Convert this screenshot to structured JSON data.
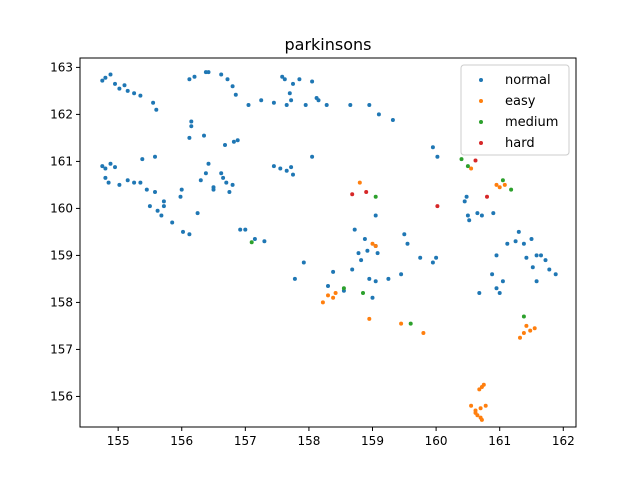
{
  "chart_data": {
    "type": "scatter",
    "title": "parkinsons",
    "xlabel": "",
    "ylabel": "",
    "xlim": [
      154.4,
      162.2
    ],
    "ylim": [
      155.35,
      163.2
    ],
    "xticks": [
      155,
      156,
      157,
      158,
      159,
      160,
      161,
      162
    ],
    "yticks": [
      156,
      157,
      158,
      159,
      160,
      161,
      162,
      163
    ],
    "grid": false,
    "legend_position": "top-right",
    "series": [
      {
        "name": "normal",
        "color": "#1f77b4",
        "points": [
          [
            154.75,
            162.72
          ],
          [
            154.8,
            162.78
          ],
          [
            154.88,
            162.85
          ],
          [
            154.95,
            162.65
          ],
          [
            155.02,
            162.55
          ],
          [
            155.1,
            162.62
          ],
          [
            155.15,
            162.5
          ],
          [
            155.25,
            162.45
          ],
          [
            155.35,
            162.4
          ],
          [
            155.55,
            162.25
          ],
          [
            155.6,
            162.1
          ],
          [
            154.75,
            160.9
          ],
          [
            154.8,
            160.85
          ],
          [
            154.88,
            160.95
          ],
          [
            154.95,
            160.88
          ],
          [
            154.8,
            160.65
          ],
          [
            154.85,
            160.55
          ],
          [
            155.02,
            160.5
          ],
          [
            155.15,
            160.6
          ],
          [
            155.25,
            160.55
          ],
          [
            155.35,
            160.55
          ],
          [
            155.38,
            161.05
          ],
          [
            155.58,
            161.1
          ],
          [
            155.45,
            160.4
          ],
          [
            155.58,
            160.35
          ],
          [
            155.5,
            160.05
          ],
          [
            155.62,
            159.95
          ],
          [
            155.68,
            159.85
          ],
          [
            155.72,
            160.05
          ],
          [
            155.72,
            160.15
          ],
          [
            155.85,
            159.7
          ],
          [
            155.98,
            160.25
          ],
          [
            156.0,
            160.4
          ],
          [
            156.02,
            159.5
          ],
          [
            156.12,
            159.45
          ],
          [
            156.25,
            159.9
          ],
          [
            156.12,
            162.75
          ],
          [
            156.2,
            162.8
          ],
          [
            156.38,
            162.9
          ],
          [
            156.42,
            162.9
          ],
          [
            156.62,
            162.85
          ],
          [
            156.72,
            162.75
          ],
          [
            156.8,
            162.6
          ],
          [
            156.85,
            162.42
          ],
          [
            156.15,
            161.85
          ],
          [
            156.15,
            161.75
          ],
          [
            156.35,
            161.55
          ],
          [
            156.12,
            161.5
          ],
          [
            156.42,
            160.95
          ],
          [
            156.38,
            160.75
          ],
          [
            156.3,
            160.6
          ],
          [
            156.5,
            160.45
          ],
          [
            156.5,
            160.4
          ],
          [
            156.65,
            160.65
          ],
          [
            156.7,
            160.55
          ],
          [
            156.62,
            160.75
          ],
          [
            156.75,
            160.35
          ],
          [
            156.8,
            160.5
          ],
          [
            156.68,
            161.35
          ],
          [
            156.82,
            161.42
          ],
          [
            156.88,
            161.45
          ],
          [
            157.05,
            162.2
          ],
          [
            157.25,
            162.3
          ],
          [
            157.45,
            162.25
          ],
          [
            157.58,
            162.8
          ],
          [
            157.62,
            162.75
          ],
          [
            157.65,
            162.2
          ],
          [
            157.7,
            162.45
          ],
          [
            157.72,
            162.3
          ],
          [
            157.75,
            162.65
          ],
          [
            157.85,
            162.75
          ],
          [
            157.95,
            162.2
          ],
          [
            158.05,
            162.7
          ],
          [
            158.12,
            162.35
          ],
          [
            158.15,
            162.3
          ],
          [
            158.28,
            162.2
          ],
          [
            158.65,
            162.2
          ],
          [
            158.95,
            162.2
          ],
          [
            159.1,
            162.0
          ],
          [
            159.32,
            161.88
          ],
          [
            157.45,
            160.9
          ],
          [
            157.55,
            160.85
          ],
          [
            157.65,
            160.8
          ],
          [
            157.72,
            160.88
          ],
          [
            157.75,
            160.72
          ],
          [
            158.05,
            161.1
          ],
          [
            156.92,
            159.55
          ],
          [
            157.0,
            159.55
          ],
          [
            157.15,
            159.35
          ],
          [
            157.3,
            159.3
          ],
          [
            157.78,
            158.5
          ],
          [
            157.92,
            158.85
          ],
          [
            158.3,
            158.35
          ],
          [
            158.38,
            158.65
          ],
          [
            158.55,
            158.25
          ],
          [
            158.68,
            158.7
          ],
          [
            158.72,
            159.55
          ],
          [
            158.78,
            159.05
          ],
          [
            158.82,
            158.9
          ],
          [
            158.88,
            159.35
          ],
          [
            158.92,
            159.1
          ],
          [
            158.95,
            158.5
          ],
          [
            159.0,
            158.1
          ],
          [
            159.05,
            159.85
          ],
          [
            159.05,
            159.2
          ],
          [
            159.08,
            159.05
          ],
          [
            159.05,
            158.45
          ],
          [
            159.25,
            158.5
          ],
          [
            159.45,
            158.6
          ],
          [
            159.5,
            159.45
          ],
          [
            159.55,
            159.25
          ],
          [
            159.75,
            158.95
          ],
          [
            159.95,
            158.85
          ],
          [
            160.0,
            158.95
          ],
          [
            159.95,
            161.3
          ],
          [
            160.02,
            161.1
          ],
          [
            160.45,
            160.15
          ],
          [
            160.48,
            160.25
          ],
          [
            160.5,
            159.85
          ],
          [
            160.52,
            159.75
          ],
          [
            160.65,
            159.9
          ],
          [
            160.72,
            159.85
          ],
          [
            160.9,
            159.9
          ],
          [
            160.68,
            158.2
          ],
          [
            160.88,
            158.6
          ],
          [
            160.95,
            158.3
          ],
          [
            161.0,
            158.2
          ],
          [
            160.95,
            159.0
          ],
          [
            161.05,
            158.45
          ],
          [
            161.12,
            159.25
          ],
          [
            161.25,
            159.3
          ],
          [
            161.3,
            159.5
          ],
          [
            161.38,
            159.25
          ],
          [
            161.42,
            158.95
          ],
          [
            161.5,
            159.35
          ],
          [
            161.52,
            158.75
          ],
          [
            161.58,
            159.0
          ],
          [
            161.65,
            159.0
          ],
          [
            161.72,
            158.9
          ],
          [
            161.78,
            158.7
          ],
          [
            161.88,
            158.6
          ],
          [
            161.58,
            158.45
          ]
        ]
      },
      {
        "name": "easy",
        "color": "#ff7f0e",
        "points": [
          [
            158.22,
            158.0
          ],
          [
            158.3,
            158.15
          ],
          [
            158.38,
            158.1
          ],
          [
            158.42,
            158.2
          ],
          [
            158.8,
            160.55
          ],
          [
            159.0,
            159.25
          ],
          [
            159.05,
            159.2
          ],
          [
            158.95,
            157.65
          ],
          [
            159.45,
            157.55
          ],
          [
            159.8,
            157.35
          ],
          [
            160.55,
            160.85
          ],
          [
            160.95,
            160.5
          ],
          [
            161.0,
            160.45
          ],
          [
            161.08,
            160.5
          ],
          [
            161.32,
            157.25
          ],
          [
            161.38,
            157.35
          ],
          [
            161.42,
            157.5
          ],
          [
            161.48,
            157.4
          ],
          [
            161.55,
            157.45
          ],
          [
            160.55,
            155.8
          ],
          [
            160.62,
            155.7
          ],
          [
            160.65,
            155.6
          ],
          [
            160.7,
            155.55
          ],
          [
            160.72,
            155.5
          ],
          [
            160.7,
            155.75
          ],
          [
            160.78,
            155.8
          ],
          [
            160.68,
            156.15
          ],
          [
            160.72,
            156.2
          ],
          [
            160.75,
            156.25
          ],
          [
            160.62,
            155.65
          ]
        ]
      },
      {
        "name": "medium",
        "color": "#2ca02c",
        "points": [
          [
            157.1,
            159.28
          ],
          [
            158.55,
            158.3
          ],
          [
            158.85,
            158.2
          ],
          [
            159.05,
            160.25
          ],
          [
            159.6,
            157.55
          ],
          [
            160.4,
            161.05
          ],
          [
            160.5,
            160.9
          ],
          [
            161.05,
            160.6
          ],
          [
            161.18,
            160.4
          ],
          [
            161.38,
            157.7
          ]
        ]
      },
      {
        "name": "hard",
        "color": "#d62728",
        "points": [
          [
            158.68,
            160.3
          ],
          [
            158.9,
            160.35
          ],
          [
            160.02,
            160.05
          ],
          [
            160.62,
            161.02
          ],
          [
            160.8,
            160.25
          ]
        ]
      }
    ]
  }
}
